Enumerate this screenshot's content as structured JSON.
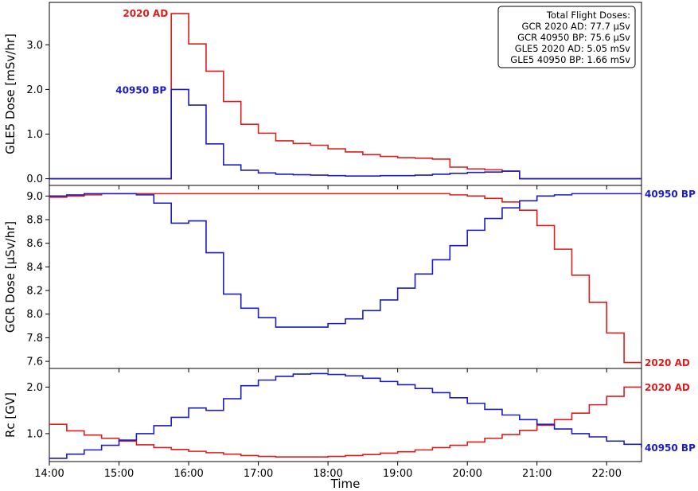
{
  "colors": {
    "ad2020": "#dd1c1c",
    "bp40950": "#1c1cbf"
  },
  "chart_data": [
    {
      "type": "line",
      "step": true,
      "panel": "top",
      "ylabel": "GLE5 Dose [mSv/hr]",
      "ylim": [
        -0.15,
        3.95
      ],
      "yticks": [
        0.0,
        1.0,
        2.0,
        3.0
      ],
      "ytick_labels": [
        "0.0",
        "1.0",
        "2.0",
        "3.0"
      ],
      "xlim": [
        14.0,
        22.5
      ],
      "x": [
        14.0,
        15.75,
        16.0,
        16.25,
        16.5,
        16.75,
        17.0,
        17.25,
        17.5,
        17.75,
        18.0,
        18.25,
        18.5,
        18.75,
        19.0,
        19.25,
        19.5,
        19.75,
        20.0,
        20.25,
        20.5,
        20.75,
        22.5
      ],
      "series": [
        {
          "name": "2020 AD",
          "label": "2020 AD",
          "color": "#dd1c1c",
          "values": [
            0.0,
            3.7,
            3.02,
            2.41,
            1.73,
            1.22,
            1.02,
            0.85,
            0.79,
            0.75,
            0.67,
            0.6,
            0.54,
            0.5,
            0.47,
            0.46,
            0.44,
            0.26,
            0.22,
            0.2,
            0.17,
            0.0,
            0.0
          ]
        },
        {
          "name": "40950 BP",
          "label": "40950 BP",
          "color": "#1c1cbf",
          "values": [
            0.0,
            2.0,
            1.65,
            0.78,
            0.31,
            0.19,
            0.13,
            0.1,
            0.09,
            0.08,
            0.07,
            0.06,
            0.06,
            0.07,
            0.07,
            0.08,
            0.1,
            0.12,
            0.14,
            0.15,
            0.17,
            0.0,
            0.0
          ]
        }
      ],
      "legend": {
        "placement": "top-right",
        "title": "Total Flight Doses:",
        "lines": [
          "GCR 2020 AD: 77.7 µSv",
          "GCR 40950 BP: 75.6 µSv",
          "GLE5 2020 AD: 5.05 mSv",
          "GLE5 40950 BP: 1.66 mSv"
        ]
      }
    },
    {
      "type": "line",
      "step": true,
      "panel": "middle",
      "ylabel": "GCR Dose [µSv/hr]",
      "ylim": [
        7.54,
        9.09
      ],
      "yticks": [
        7.6,
        7.8,
        8.0,
        8.2,
        8.4,
        8.6,
        8.8,
        9.0
      ],
      "ytick_labels": [
        "7.6",
        "7.8",
        "8.0",
        "8.2",
        "8.4",
        "8.6",
        "8.8",
        "9.0"
      ],
      "xlim": [
        14.0,
        22.5
      ],
      "x": [
        14.0,
        14.25,
        14.5,
        14.75,
        15.0,
        15.25,
        15.5,
        15.75,
        16.0,
        16.25,
        16.5,
        16.75,
        17.0,
        17.25,
        17.5,
        17.75,
        18.0,
        18.25,
        18.5,
        18.75,
        19.0,
        19.25,
        19.5,
        19.75,
        20.0,
        20.25,
        20.5,
        20.75,
        21.0,
        21.25,
        21.5,
        21.75,
        22.0,
        22.25,
        22.5
      ],
      "series": [
        {
          "name": "2020 AD",
          "label": "2020 AD",
          "color": "#dd1c1c",
          "values": [
            8.99,
            9.0,
            9.01,
            9.02,
            9.02,
            9.02,
            9.02,
            9.02,
            9.02,
            9.02,
            9.02,
            9.02,
            9.02,
            9.02,
            9.02,
            9.02,
            9.02,
            9.02,
            9.02,
            9.02,
            9.02,
            9.02,
            9.02,
            9.01,
            9.0,
            8.98,
            8.95,
            8.88,
            8.75,
            8.55,
            8.33,
            8.1,
            7.84,
            7.59,
            7.59
          ]
        },
        {
          "name": "40950 BP",
          "label": "40950 BP",
          "color": "#1c1cbf",
          "values": [
            9.0,
            9.01,
            9.02,
            9.02,
            9.02,
            9.01,
            8.94,
            8.77,
            8.79,
            8.52,
            8.17,
            8.05,
            7.97,
            7.89,
            7.89,
            7.89,
            7.92,
            7.96,
            8.03,
            8.12,
            8.22,
            8.34,
            8.46,
            8.58,
            8.71,
            8.81,
            8.9,
            8.96,
            9.0,
            9.01,
            9.02,
            9.02,
            9.02,
            9.02,
            9.02
          ]
        }
      ]
    },
    {
      "type": "line",
      "step": true,
      "panel": "bottom",
      "xlabel": "Time",
      "ylabel": "Rc [GV]",
      "ylim": [
        0.4,
        2.4
      ],
      "yticks": [
        1.0,
        2.0
      ],
      "ytick_labels": [
        "1.0",
        "2.0"
      ],
      "xlim": [
        14.0,
        22.5
      ],
      "xticks": [
        14.0,
        15.0,
        16.0,
        17.0,
        18.0,
        19.0,
        20.0,
        21.0,
        22.0
      ],
      "xtick_labels": [
        "14:00",
        "15:00",
        "16:00",
        "17:00",
        "18:00",
        "19:00",
        "20:00",
        "21:00",
        "22:00"
      ],
      "x": [
        14.0,
        14.25,
        14.5,
        14.75,
        15.0,
        15.25,
        15.5,
        15.75,
        16.0,
        16.25,
        16.5,
        16.75,
        17.0,
        17.25,
        17.5,
        17.75,
        18.0,
        18.25,
        18.5,
        18.75,
        19.0,
        19.25,
        19.5,
        19.75,
        20.0,
        20.25,
        20.5,
        20.75,
        21.0,
        21.25,
        21.5,
        21.75,
        22.0,
        22.25,
        22.5
      ],
      "series": [
        {
          "name": "2020 AD",
          "label": "2020 AD",
          "color": "#dd1c1c",
          "values": [
            1.2,
            1.06,
            0.97,
            0.9,
            0.84,
            0.76,
            0.7,
            0.66,
            0.62,
            0.59,
            0.56,
            0.53,
            0.51,
            0.5,
            0.5,
            0.5,
            0.51,
            0.53,
            0.55,
            0.58,
            0.61,
            0.65,
            0.7,
            0.75,
            0.82,
            0.9,
            0.98,
            1.07,
            1.18,
            1.3,
            1.44,
            1.62,
            1.8,
            2.0,
            2.0
          ]
        },
        {
          "name": "40950 BP",
          "label": "40950 BP",
          "color": "#1c1cbf",
          "values": [
            0.47,
            0.56,
            0.65,
            0.75,
            0.86,
            1.0,
            1.17,
            1.35,
            1.55,
            1.5,
            1.75,
            2.03,
            2.15,
            2.23,
            2.28,
            2.29,
            2.27,
            2.24,
            2.19,
            2.12,
            2.05,
            1.97,
            1.88,
            1.77,
            1.65,
            1.52,
            1.4,
            1.3,
            1.2,
            1.1,
            1.0,
            0.93,
            0.84,
            0.77,
            0.7
          ]
        }
      ]
    }
  ]
}
